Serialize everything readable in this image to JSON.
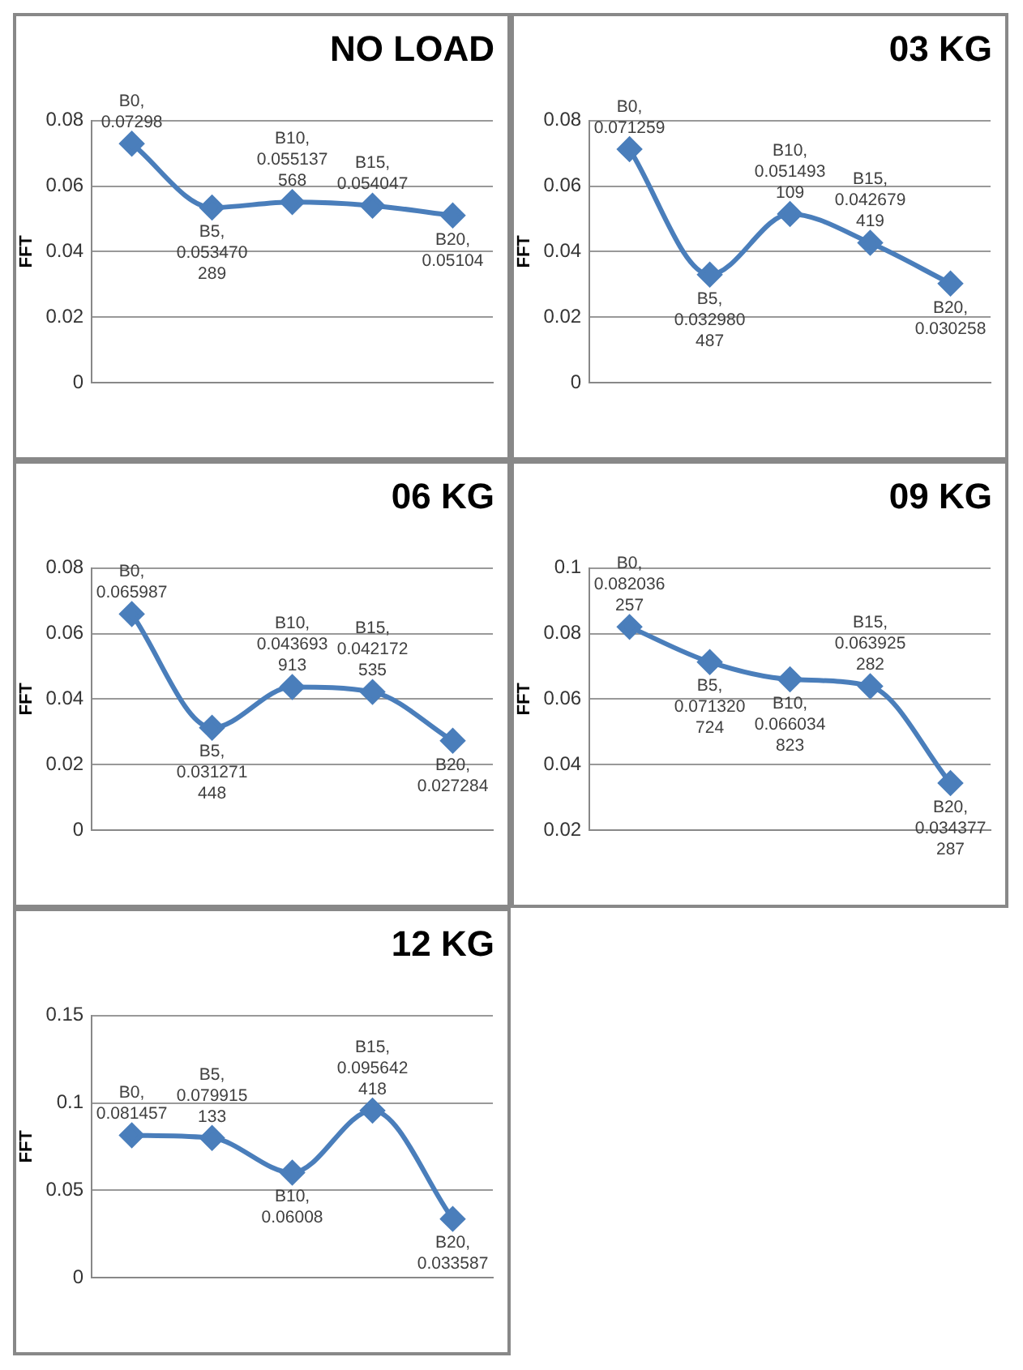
{
  "chart_data": [
    {
      "type": "line",
      "title": "NO LOAD",
      "ylabel": "FFT",
      "categories": [
        null,
        null,
        null,
        null,
        null
      ],
      "ylim": [
        0,
        0.08
      ],
      "yticks": [
        0,
        0.02,
        0.04,
        0.06,
        0.08
      ],
      "grid": "y",
      "tick_labels": "y",
      "marker": "diamond",
      "series": [
        {
          "color": "#4a7ebb",
          "values": [
            0.07298,
            0.053470289,
            0.055137568,
            0.054047,
            0.05104
          ],
          "value_labels": [
            "B0, 0.07298",
            "B5, 0.053470289",
            "B10, 0.055137568",
            "B15, 0.054047",
            "B20, 0.05104"
          ]
        }
      ]
    },
    {
      "type": "line",
      "title": "03 KG",
      "ylabel": "FFT",
      "categories": [
        null,
        null,
        null,
        null,
        null
      ],
      "ylim": [
        0,
        0.08
      ],
      "yticks": [
        0,
        0.02,
        0.04,
        0.06,
        0.08
      ],
      "grid": "y",
      "tick_labels": "y",
      "marker": "diamond",
      "series": [
        {
          "color": "#4a7ebb",
          "values": [
            0.071259,
            0.032980487,
            0.051493109,
            0.042679419,
            0.030258
          ],
          "value_labels": [
            "B0, 0.071259",
            "B5, 0.032980487",
            "B10, 0.051493109",
            "B15, 0.042679419",
            "B20, 0.030258"
          ]
        }
      ]
    },
    {
      "type": "line",
      "title": "06 KG",
      "ylabel": "FFT",
      "categories": [
        null,
        null,
        null,
        null,
        null
      ],
      "ylim": [
        0,
        0.08
      ],
      "yticks": [
        0,
        0.02,
        0.04,
        0.06,
        0.08
      ],
      "grid": "y",
      "tick_labels": "y",
      "marker": "diamond",
      "series": [
        {
          "color": "#4a7ebb",
          "values": [
            0.065987,
            0.031271448,
            0.043693913,
            0.042172535,
            0.027284
          ],
          "value_labels": [
            "B0, 0.065987",
            "B5, 0.031271448",
            "B10, 0.043693913",
            "B15, 0.042172535",
            "B20, 0.027284"
          ]
        }
      ]
    },
    {
      "type": "line",
      "title": "09 KG",
      "ylabel": "FFT",
      "categories": [
        null,
        null,
        null,
        null,
        null
      ],
      "ylim": [
        0.02,
        0.1
      ],
      "yticks": [
        0.02,
        0.04,
        0.06,
        0.08,
        0.1
      ],
      "grid": "y",
      "tick_labels": "y",
      "marker": "diamond",
      "series": [
        {
          "color": "#4a7ebb",
          "values": [
            0.082036257,
            0.071320724,
            0.066034823,
            0.063925282,
            0.034377287
          ],
          "value_labels": [
            "B0, 0.082036257",
            "B5, 0.071320724",
            "B10, 0.066034823",
            "B15, 0.063925282",
            "B20, 0.034377287"
          ]
        }
      ]
    },
    {
      "type": "line",
      "title": "12 KG",
      "ylabel": "FFT",
      "categories": [
        null,
        null,
        null,
        null,
        null
      ],
      "ylim": [
        0,
        0.15
      ],
      "yticks": [
        0,
        0.05,
        0.1,
        0.15
      ],
      "grid": "y",
      "tick_labels": "y",
      "marker": "diamond",
      "series": [
        {
          "color": "#4a7ebb",
          "values": [
            0.081457,
            0.079915133,
            0.06008,
            0.095642418,
            0.033587
          ],
          "value_labels": [
            "B0, 0.081457",
            "B5, 0.079915133",
            "B10, 0.06008",
            "B15, 0.095642418",
            "B20, 0.033587"
          ]
        }
      ]
    }
  ]
}
